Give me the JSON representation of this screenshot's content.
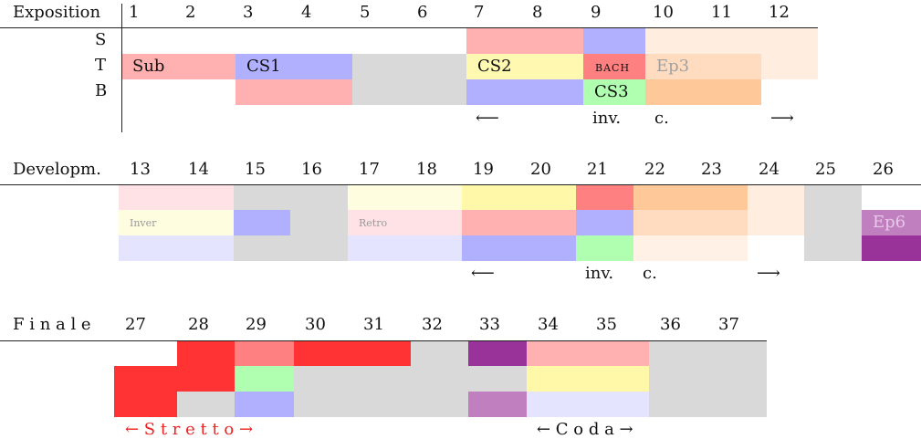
{
  "sections": [
    {
      "title": "Exposition",
      "measures": [
        "1",
        "2",
        "3",
        "4",
        "5",
        "6",
        "7",
        "8",
        "9",
        "10",
        "11",
        "12"
      ],
      "voices": [
        "S",
        "T",
        "B"
      ],
      "blocks": [
        {
          "row": 0,
          "from": 7,
          "to": 8,
          "color": "#ffb0b0"
        },
        {
          "row": 0,
          "from": 9,
          "to": 9,
          "color": "#b0b0ff"
        },
        {
          "row": 0,
          "from": 10,
          "to": 12,
          "color": "#ffeedf"
        },
        {
          "row": 1,
          "from": 1,
          "to": 2,
          "color": "#ffb0b0",
          "label": "Sub"
        },
        {
          "row": 1,
          "from": 3,
          "to": 4,
          "color": "#b0b0ff",
          "label": "CS1"
        },
        {
          "row": 1,
          "from": 5,
          "to": 6,
          "color": "#d9d9d9"
        },
        {
          "row": 1,
          "from": 7,
          "to": 8,
          "color": "#fff8b0",
          "label": "CS2"
        },
        {
          "row": 1,
          "from": 9,
          "to": 9,
          "color": "#ff8080",
          "label": "BACH",
          "label_style": "smallcaps"
        },
        {
          "row": 1,
          "from": 10,
          "to": 11,
          "color": "#ffdcc0",
          "label": "Ep3",
          "label_color": "#a0a0a0"
        },
        {
          "row": 1,
          "from": 12,
          "to": 12,
          "color": "#ffeedf"
        },
        {
          "row": 2,
          "from": 3,
          "to": 4,
          "color": "#ffb0b0"
        },
        {
          "row": 2,
          "from": 5,
          "to": 6,
          "color": "#d9d9d9"
        },
        {
          "row": 2,
          "from": 7,
          "to": 8,
          "color": "#b0b0ff"
        },
        {
          "row": 2,
          "from": 9,
          "to": 9,
          "color": "#b0ffb0",
          "label": "CS3"
        },
        {
          "row": 2,
          "from": 10,
          "to": 11,
          "color": "#ffc898"
        }
      ],
      "annotations": [
        {
          "at": 7,
          "text": "⟵"
        },
        {
          "at": 9,
          "text": "inv."
        },
        {
          "at": 10,
          "text": "c."
        },
        {
          "at": 12,
          "text": "⟶"
        }
      ]
    },
    {
      "title": "Developm.",
      "measures": [
        "13",
        "14",
        "15",
        "16",
        "17",
        "18",
        "19",
        "20",
        "21",
        "22",
        "23",
        "24",
        "25",
        "26"
      ],
      "voices": [],
      "blocks": [
        {
          "row": 0,
          "from": 13,
          "to": 14,
          "color": "#ffe2e6"
        },
        {
          "row": 0,
          "from": 15,
          "to": 16,
          "color": "#d9d9d9"
        },
        {
          "row": 0,
          "from": 17,
          "to": 18,
          "color": "#fffde0"
        },
        {
          "row": 0,
          "from": 19,
          "to": 20,
          "color": "#fff8a8"
        },
        {
          "row": 0,
          "from": 21,
          "to": 21,
          "color": "#ff8080"
        },
        {
          "row": 0,
          "from": 22,
          "to": 23,
          "color": "#ffc898"
        },
        {
          "row": 0,
          "from": 24,
          "to": 24,
          "color": "#ffeedf"
        },
        {
          "row": 0,
          "from": 25,
          "to": 25,
          "color": "#d9d9d9"
        },
        {
          "row": 1,
          "from": 13,
          "to": 14,
          "color": "#fffde0",
          "label": "Inver",
          "label_style": "tiny",
          "label_color": "#9a9a9a"
        },
        {
          "row": 1,
          "from": 15,
          "to": 15,
          "color": "#b0b0ff"
        },
        {
          "row": 1,
          "from": 16,
          "to": 16,
          "color": "#d9d9d9"
        },
        {
          "row": 1,
          "from": 17,
          "to": 18,
          "color": "#ffe2e6",
          "label": "Retro",
          "label_style": "tiny",
          "label_color": "#9a9a9a"
        },
        {
          "row": 1,
          "from": 19,
          "to": 20,
          "color": "#ffb0b0"
        },
        {
          "row": 1,
          "from": 21,
          "to": 21,
          "color": "#b0b0ff"
        },
        {
          "row": 1,
          "from": 22,
          "to": 23,
          "color": "#ffdcc0"
        },
        {
          "row": 1,
          "from": 24,
          "to": 24,
          "color": "#ffeedf"
        },
        {
          "row": 1,
          "from": 25,
          "to": 25,
          "color": "#d9d9d9"
        },
        {
          "row": 1,
          "from": 26,
          "to": 26,
          "color": "#c080c0",
          "label": "Ep6",
          "label_color": "#e8c8e8"
        },
        {
          "row": 2,
          "from": 13,
          "to": 14,
          "color": "#e4e4ff"
        },
        {
          "row": 2,
          "from": 15,
          "to": 16,
          "color": "#d9d9d9"
        },
        {
          "row": 2,
          "from": 17,
          "to": 18,
          "color": "#e4e4ff"
        },
        {
          "row": 2,
          "from": 19,
          "to": 20,
          "color": "#b0b0ff"
        },
        {
          "row": 2,
          "from": 21,
          "to": 21,
          "color": "#b0ffb0"
        },
        {
          "row": 2,
          "from": 22,
          "to": 23,
          "color": "#fff1e6"
        },
        {
          "row": 2,
          "from": 25,
          "to": 25,
          "color": "#d9d9d9"
        },
        {
          "row": 2,
          "from": 26,
          "to": 26,
          "color": "#993399"
        }
      ],
      "annotations": [
        {
          "at": 19,
          "text": "⟵"
        },
        {
          "at": 21,
          "text": "inv."
        },
        {
          "at": 22,
          "text": "c."
        },
        {
          "at": 24,
          "text": "⟶"
        }
      ]
    },
    {
      "title": "F i n a l e",
      "measures": [
        "27",
        "28",
        "29",
        "30",
        "31",
        "32",
        "33",
        "34",
        "35",
        "36",
        "37"
      ],
      "voices": [],
      "blocks": [
        {
          "row": 0,
          "from": 28,
          "to": 28,
          "color": "#ff3333"
        },
        {
          "row": 0,
          "from": 29,
          "to": 29,
          "color": "#ff8080"
        },
        {
          "row": 0,
          "from": 30,
          "to": 31,
          "color": "#ff3333"
        },
        {
          "row": 0,
          "from": 32,
          "to": 32,
          "color": "#d9d9d9"
        },
        {
          "row": 0,
          "from": 33,
          "to": 33,
          "color": "#993399"
        },
        {
          "row": 0,
          "from": 34,
          "to": 35,
          "color": "#ffb0b0"
        },
        {
          "row": 0,
          "from": 36,
          "to": 37,
          "color": "#d9d9d9"
        },
        {
          "row": 1,
          "from": 27,
          "to": 28,
          "color": "#ff3333"
        },
        {
          "row": 1,
          "from": 29,
          "to": 29,
          "color": "#b0ffb0"
        },
        {
          "row": 1,
          "from": 30,
          "to": 33,
          "color": "#d9d9d9"
        },
        {
          "row": 1,
          "from": 34,
          "to": 35,
          "color": "#fff8a8"
        },
        {
          "row": 1,
          "from": 36,
          "to": 37,
          "color": "#d9d9d9"
        },
        {
          "row": 2,
          "from": 27,
          "to": 27,
          "color": "#ff3333"
        },
        {
          "row": 2,
          "from": 28,
          "to": 28,
          "color": "#d9d9d9"
        },
        {
          "row": 2,
          "from": 29,
          "to": 29,
          "color": "#b0b0ff"
        },
        {
          "row": 2,
          "from": 30,
          "to": 32,
          "color": "#d9d9d9"
        },
        {
          "row": 2,
          "from": 33,
          "to": 33,
          "color": "#c080c0"
        },
        {
          "row": 2,
          "from": 34,
          "to": 35,
          "color": "#e4e4ff"
        },
        {
          "row": 2,
          "from": 36,
          "to": 37,
          "color": "#d9d9d9"
        }
      ],
      "annotations": [
        {
          "text": "← S  t  r  e  t  t  o  →",
          "color": "#ee2222"
        },
        {
          "text": "← C     o     d    a →",
          "color": "#111111"
        }
      ]
    }
  ]
}
